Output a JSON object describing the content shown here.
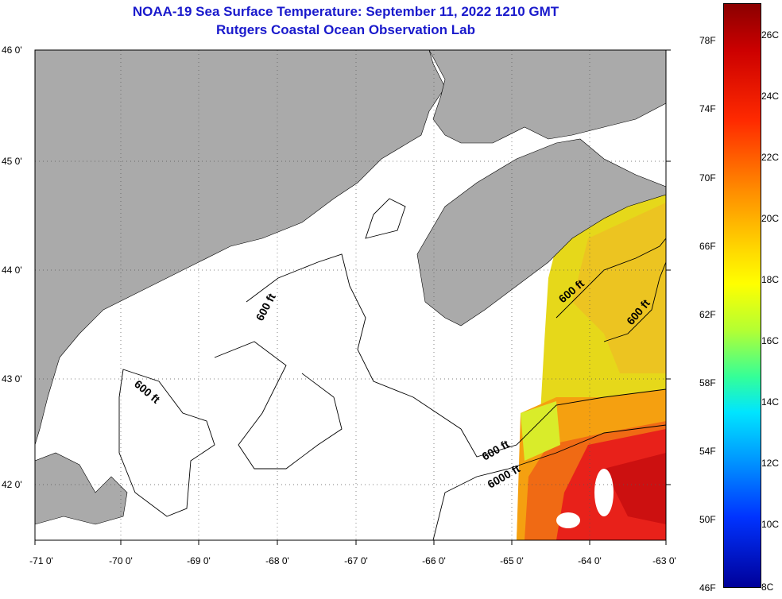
{
  "title": {
    "line1": "NOAA-19 Sea Surface Temperature:  September 11, 2022 1210 GMT",
    "line2": "Rutgers Coastal Ocean Observation Lab"
  },
  "map": {
    "lat_labels": [
      "46 0'",
      "45 0'",
      "44 0'",
      "43 0'",
      "42 0'"
    ],
    "lon_labels": [
      "-71 0'",
      "-70 0'",
      "-69 0'",
      "-68 0'",
      "-67 0'",
      "-66 0'",
      "-65 0'",
      "-64 0'",
      "-63 0'"
    ],
    "contour_labels": [
      "600 ft",
      "600 ft",
      "600 ft",
      "600 ft",
      "600 ft",
      "6000 ft"
    ],
    "colors": {
      "land": "#aaaaaa",
      "nodata": "#ffffff",
      "sst_warm": "#e8211a",
      "sst_mid": "#f5a010",
      "sst_cool": "#e6e619"
    }
  },
  "colorbar": {
    "fahrenheit": [
      "78F",
      "74F",
      "70F",
      "66F",
      "62F",
      "58F",
      "54F",
      "50F",
      "46F"
    ],
    "celsius": [
      "26C",
      "24C",
      "22C",
      "20C",
      "18C",
      "16C",
      "14C",
      "12C",
      "10C",
      "8C"
    ],
    "range_c": [
      8,
      27
    ]
  }
}
